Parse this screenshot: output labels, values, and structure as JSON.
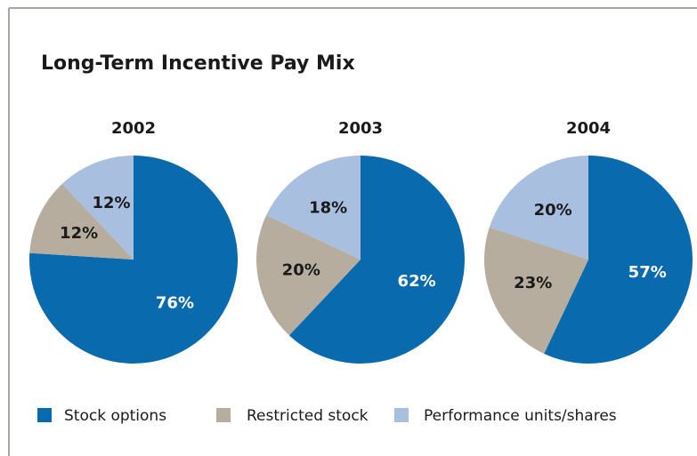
{
  "title": "Long-Term Incentive Pay Mix",
  "chart_data": [
    {
      "type": "pie",
      "title": "2002",
      "categories": [
        "Stock options",
        "Restricted stock",
        "Performance units/shares"
      ],
      "colors": [
        "#0a6aae",
        "#b6ad9f",
        "#a8bfe0"
      ],
      "values": [
        76,
        12,
        12
      ],
      "value_labels": [
        "76%",
        "12%",
        "12%"
      ]
    },
    {
      "type": "pie",
      "title": "2003",
      "categories": [
        "Stock options",
        "Restricted stock",
        "Performance units/shares"
      ],
      "colors": [
        "#0a6aae",
        "#b6ad9f",
        "#a8bfe0"
      ],
      "values": [
        62,
        20,
        18
      ],
      "value_labels": [
        "62%",
        "20%",
        "18%"
      ]
    },
    {
      "type": "pie",
      "title": "2004",
      "categories": [
        "Stock options",
        "Restricted stock",
        "Performance units/shares"
      ],
      "colors": [
        "#0a6aae",
        "#b6ad9f",
        "#a8bfe0"
      ],
      "values": [
        57,
        23,
        20
      ],
      "value_labels": [
        "57%",
        "23%",
        "20%"
      ]
    }
  ]
}
